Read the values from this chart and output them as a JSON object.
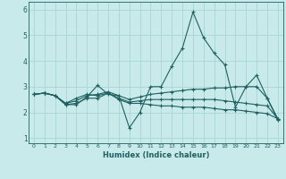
{
  "xlabel": "Humidex (Indice chaleur)",
  "ylabel": "",
  "background_color": "#c8eaea",
  "grid_color": "#aad4d4",
  "line_color": "#206060",
  "xlim": [
    -0.5,
    23.5
  ],
  "ylim": [
    0.8,
    6.3
  ],
  "yticks": [
    1,
    2,
    3,
    4,
    5,
    6
  ],
  "xticks": [
    0,
    1,
    2,
    3,
    4,
    5,
    6,
    7,
    8,
    9,
    10,
    11,
    12,
    13,
    14,
    15,
    16,
    17,
    18,
    19,
    20,
    21,
    22,
    23
  ],
  "series": [
    {
      "x": [
        0,
        1,
        2,
        3,
        4,
        5,
        6,
        7,
        8,
        9,
        10,
        11,
        12,
        13,
        14,
        15,
        16,
        17,
        18,
        19,
        20,
        21,
        22,
        23
      ],
      "y": [
        2.7,
        2.75,
        2.65,
        2.3,
        2.3,
        2.6,
        3.05,
        2.7,
        2.65,
        1.4,
        2.0,
        3.0,
        3.0,
        3.8,
        4.5,
        5.9,
        4.9,
        4.3,
        3.85,
        2.2,
        3.0,
        3.45,
        2.55,
        1.7
      ]
    },
    {
      "x": [
        0,
        1,
        2,
        3,
        4,
        5,
        6,
        7,
        8,
        9,
        10,
        11,
        12,
        13,
        14,
        15,
        16,
        17,
        18,
        19,
        20,
        21,
        22,
        23
      ],
      "y": [
        2.7,
        2.75,
        2.65,
        2.3,
        2.35,
        2.55,
        2.55,
        2.75,
        2.5,
        2.35,
        2.35,
        2.3,
        2.25,
        2.25,
        2.2,
        2.2,
        2.2,
        2.15,
        2.1,
        2.1,
        2.05,
        2.0,
        1.95,
        1.75
      ]
    },
    {
      "x": [
        0,
        1,
        2,
        3,
        4,
        5,
        6,
        7,
        8,
        9,
        10,
        11,
        12,
        13,
        14,
        15,
        16,
        17,
        18,
        19,
        20,
        21,
        22,
        23
      ],
      "y": [
        2.7,
        2.75,
        2.65,
        2.35,
        2.45,
        2.65,
        2.7,
        2.8,
        2.65,
        2.5,
        2.6,
        2.7,
        2.75,
        2.8,
        2.85,
        2.9,
        2.9,
        2.95,
        2.95,
        3.0,
        3.0,
        3.0,
        2.55,
        1.75
      ]
    },
    {
      "x": [
        0,
        1,
        2,
        3,
        4,
        5,
        6,
        7,
        8,
        9,
        10,
        11,
        12,
        13,
        14,
        15,
        16,
        17,
        18,
        19,
        20,
        21,
        22,
        23
      ],
      "y": [
        2.7,
        2.75,
        2.65,
        2.35,
        2.55,
        2.7,
        2.65,
        2.75,
        2.55,
        2.4,
        2.45,
        2.5,
        2.5,
        2.5,
        2.5,
        2.5,
        2.5,
        2.5,
        2.45,
        2.4,
        2.35,
        2.3,
        2.25,
        1.75
      ]
    }
  ]
}
